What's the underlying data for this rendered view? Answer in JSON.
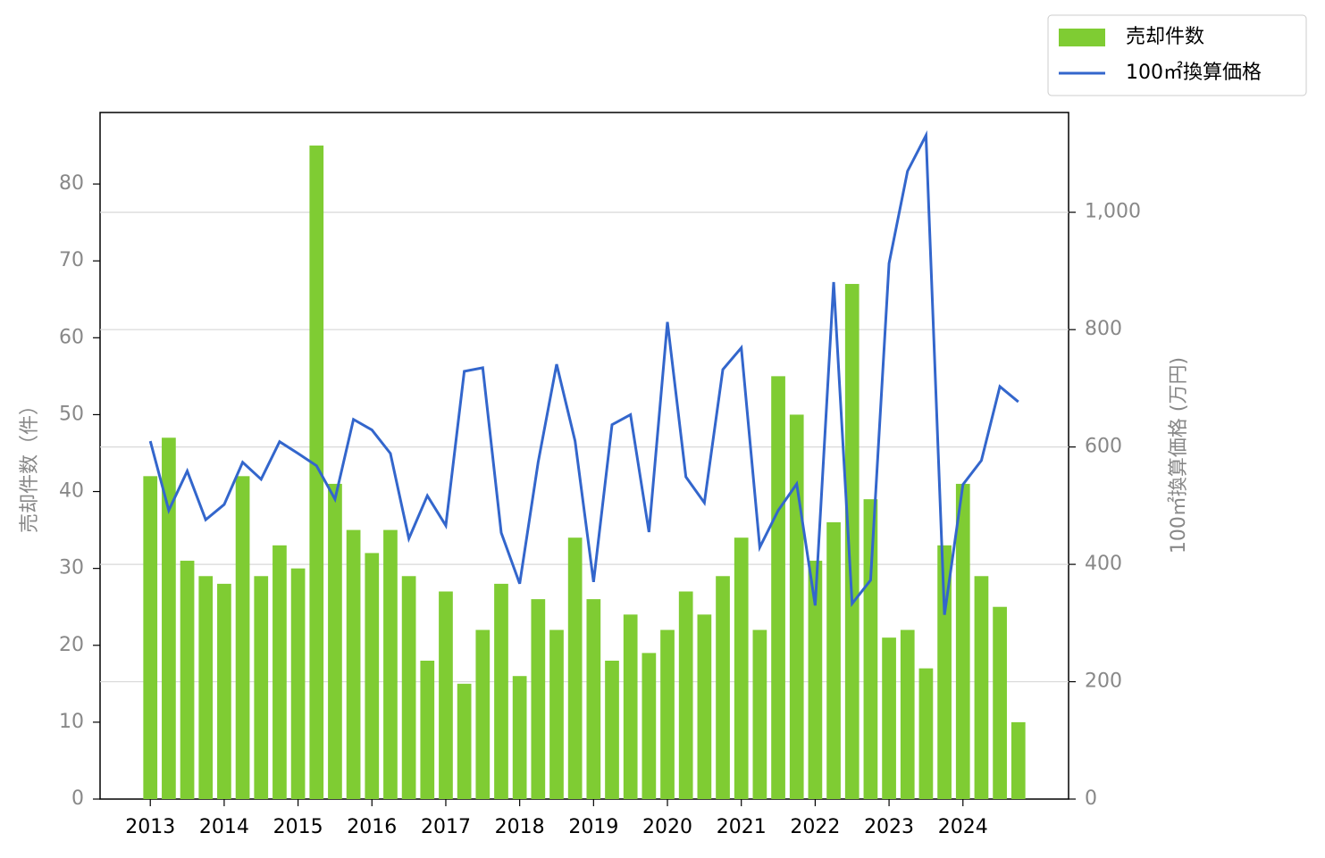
{
  "chart_data": {
    "type": "bar-line",
    "x": [
      2013,
      2013.25,
      2013.5,
      2013.75,
      2014,
      2014.25,
      2014.5,
      2014.75,
      2015,
      2015.25,
      2015.5,
      2015.75,
      2016,
      2016.25,
      2016.5,
      2016.75,
      2017,
      2017.25,
      2017.5,
      2017.75,
      2018,
      2018.25,
      2018.5,
      2018.75,
      2019,
      2019.25,
      2019.5,
      2019.75,
      2020,
      2020.25,
      2020.5,
      2020.75,
      2021,
      2021.25,
      2021.5,
      2021.75,
      2022,
      2022.25,
      2022.5,
      2022.75,
      2023,
      2023.25,
      2023.5,
      2023.75,
      2024,
      2024.25,
      2024.5,
      2024.75
    ],
    "series": [
      {
        "name": "売却件数",
        "color": "#7fcc33",
        "kind": "bar",
        "values": [
          42,
          47,
          31,
          29,
          28,
          42,
          29,
          33,
          30,
          85,
          41,
          35,
          32,
          35,
          29,
          18,
          27,
          15,
          22,
          28,
          16,
          26,
          22,
          34,
          26,
          18,
          24,
          19,
          22,
          27,
          24,
          29,
          34,
          22,
          55,
          50,
          31,
          36,
          67,
          39,
          21,
          22,
          17,
          33,
          41,
          29,
          25,
          10
        ]
      },
      {
        "name": "100㎡換算価格",
        "color": "#3366cc",
        "kind": "line",
        "axis": "y2",
        "values": [
          610,
          492,
          559,
          476,
          502,
          574,
          545,
          609,
          589,
          568,
          511,
          647,
          629,
          589,
          444,
          517,
          466,
          729,
          735,
          454,
          367,
          574,
          741,
          610,
          370,
          638,
          655,
          455,
          813,
          549,
          505,
          732,
          769,
          429,
          492,
          537,
          330,
          881,
          333,
          373,
          913,
          1070,
          1131,
          314,
          536,
          577,
          703,
          677
        ]
      }
    ],
    "y_label": "売却件数（件）",
    "y2_label": "100㎡換算価格 (万円)",
    "xlim": [
      2012.32,
      2025.43
    ],
    "xticks": [
      2013,
      2014,
      2015,
      2016,
      2017,
      2018,
      2019,
      2020,
      2021,
      2022,
      2023,
      2024
    ],
    "ylim": [
      0,
      89.3
    ],
    "yticks": [
      0,
      10,
      20,
      30,
      40,
      50,
      60,
      70,
      80
    ],
    "y2lim": [
      0,
      1170
    ],
    "y2ticks": [
      0,
      200,
      400,
      600,
      800,
      {
        "value": 1000,
        "label": "1,000"
      }
    ],
    "grid": "y2",
    "legend": "upper right"
  }
}
